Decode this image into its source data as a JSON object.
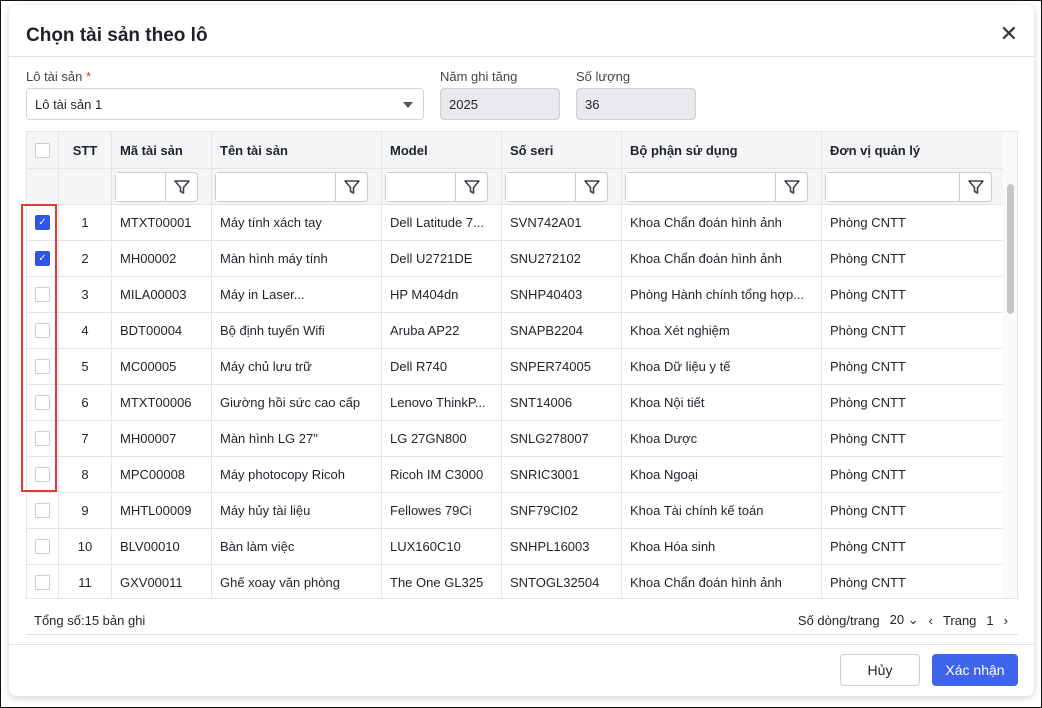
{
  "dialog": {
    "title": "Chọn tài sản theo lô"
  },
  "form": {
    "batch_label": "Lô tài sản",
    "required_mark": "*",
    "batch_value": "Lô tài sản 1",
    "year_label": "Năm ghi tăng",
    "year_value": "2025",
    "qty_label": "Số lượng",
    "qty_value": "36"
  },
  "table": {
    "headers": [
      "STT",
      "Mã tài sản",
      "Tên tài sản",
      "Model",
      "Số seri",
      "Bộ phận sử dụng",
      "Đơn vị quản lý"
    ],
    "rows": [
      {
        "checked": true,
        "c": [
          "1",
          "MTXT00001",
          "Máy tính xách tay",
          "Dell Latitude 7...",
          "SVN742A01",
          "Khoa Chẩn đoán hình ảnh",
          "Phòng CNTT"
        ]
      },
      {
        "checked": true,
        "c": [
          "2",
          "MH00002",
          "Màn hình máy tính",
          "Dell U2721DE",
          "SNU272102",
          "Khoa Chẩn đoán hình ảnh",
          "Phòng CNTT"
        ]
      },
      {
        "checked": false,
        "c": [
          "3",
          "MILA00003",
          "Máy in Laser...",
          "HP M404dn",
          "SNHP40403",
          "Phòng Hành chính tổng hợp...",
          "Phòng CNTT"
        ]
      },
      {
        "checked": false,
        "c": [
          "4",
          "BDT00004",
          "Bộ định tuyến Wifi",
          "Aruba AP22",
          "SNAPB2204",
          "Khoa Xét nghiệm",
          "Phòng CNTT"
        ]
      },
      {
        "checked": false,
        "c": [
          "5",
          "MC00005",
          "Máy chủ lưu trữ",
          "Dell R740",
          "SNPER74005",
          "Khoa Dữ liệu y tế",
          "Phòng CNTT"
        ]
      },
      {
        "checked": false,
        "c": [
          "6",
          "MTXT00006",
          "Giường hồi sức cao cấp",
          "Lenovo ThinkP...",
          "SNT14006",
          "Khoa Nội tiết",
          "Phòng CNTT"
        ]
      },
      {
        "checked": false,
        "c": [
          "7",
          "MH00007",
          "Màn hình LG 27\"",
          "LG 27GN800",
          "SNLG278007",
          "Khoa Dược",
          "Phòng CNTT"
        ]
      },
      {
        "checked": false,
        "c": [
          "8",
          "MPC00008",
          "Máy photocopy Ricoh",
          "Ricoh IM C3000",
          "SNRIC3001",
          "Khoa Ngoại",
          "Phòng CNTT"
        ]
      },
      {
        "checked": false,
        "c": [
          "9",
          "MHTL00009",
          "Máy hủy tài liệu",
          "Fellowes 79Ci",
          "SNF79CI02",
          "Khoa Tài chính kế toán",
          "Phòng CNTT"
        ]
      },
      {
        "checked": false,
        "c": [
          "10",
          "BLV00010",
          "Bàn làm việc",
          "LUX160C10",
          "SNHPL16003",
          "Khoa Hóa sinh",
          "Phòng CNTT"
        ]
      },
      {
        "checked": false,
        "c": [
          "11",
          "GXV00011",
          "Ghế xoay văn phòng",
          "The One GL325",
          "SNTOGL32504",
          "Khoa Chẩn đoán hình ảnh",
          "Phòng CNTT"
        ]
      }
    ]
  },
  "footer": {
    "total": "Tổng số:15 bản ghi",
    "rows_per_page_label": "Số dòng/trang",
    "rows_per_page": "20",
    "page_label": "Trang",
    "page": "1"
  },
  "buttons": {
    "cancel": "Hủy",
    "confirm": "Xác nhận"
  },
  "colors": {
    "primary": "#3f63eb",
    "highlight": "#e53935"
  }
}
